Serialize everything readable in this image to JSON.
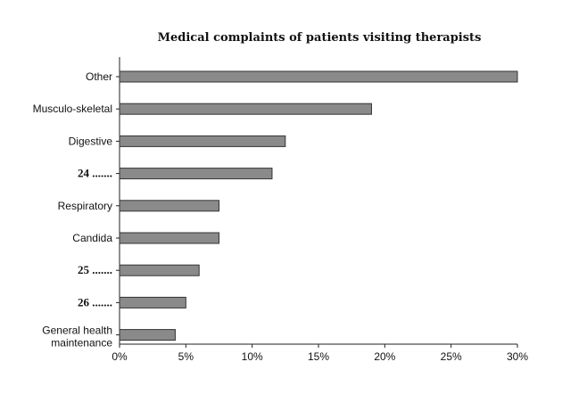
{
  "chart_data": {
    "type": "bar",
    "orientation": "horizontal",
    "title": "Medical complaints of patients visiting therapists",
    "xlabel": "",
    "ylabel": "",
    "xlim": [
      0,
      30
    ],
    "x_ticks": [
      "0%",
      "5%",
      "10%",
      "15%",
      "20%",
      "25%",
      "30%"
    ],
    "grid": false,
    "categories": [
      [
        "Other"
      ],
      [
        "Musculo-skeletal"
      ],
      [
        "Digestive"
      ],
      [
        "24 ......."
      ],
      [
        "Respiratory"
      ],
      [
        "Candida"
      ],
      [
        "25 ......."
      ],
      [
        "26 ......."
      ],
      [
        "General health",
        "maintenance"
      ]
    ],
    "category_styles": [
      "normal",
      "normal",
      "normal",
      "bold",
      "normal",
      "normal",
      "bold",
      "bold",
      "normal"
    ],
    "values": [
      30,
      19,
      12.5,
      11.5,
      7.5,
      7.5,
      6,
      5,
      4.2
    ],
    "unit": "%"
  }
}
